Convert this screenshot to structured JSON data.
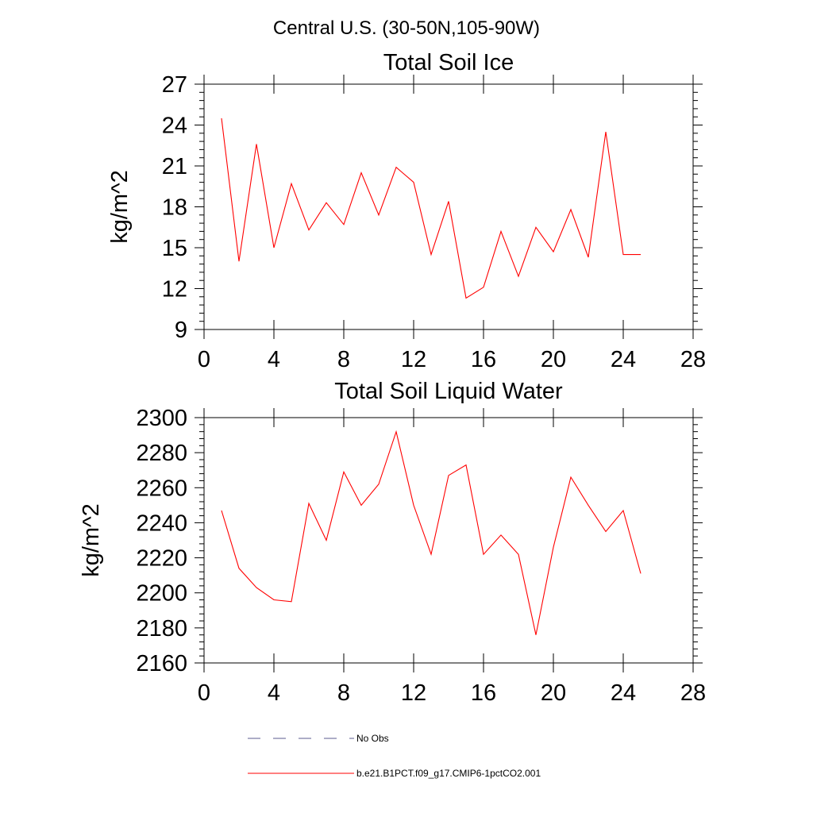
{
  "page_title": "Central U.S. (30-50N,105-90W)",
  "colors": {
    "model": "#ff0000",
    "obs": "#5b5b8f",
    "axis": "#000000"
  },
  "legend": {
    "obs_label": "No Obs",
    "model_label": "b.e21.B1PCT.f09_g17.CMIP6-1pctCO2.001"
  },
  "chart_data": [
    {
      "type": "line",
      "title": "Total Soil Ice",
      "xlabel": "",
      "ylabel": "kg/m^2",
      "xlim": [
        0,
        28
      ],
      "ylim": [
        9,
        27
      ],
      "xticks": [
        0,
        4,
        8,
        12,
        16,
        20,
        24,
        28
      ],
      "yticks": [
        9,
        12,
        15,
        18,
        21,
        24,
        27
      ],
      "x": [
        1,
        2,
        3,
        4,
        5,
        6,
        7,
        8,
        9,
        10,
        11,
        12,
        13,
        14,
        15,
        16,
        17,
        18,
        19,
        20,
        21,
        22,
        23,
        24,
        25
      ],
      "series": [
        {
          "name": "b.e21.B1PCT.f09_g17.CMIP6-1pctCO2.001",
          "values": [
            24.5,
            14.0,
            22.6,
            15.0,
            19.7,
            16.3,
            18.3,
            16.7,
            20.5,
            17.4,
            20.9,
            19.8,
            14.5,
            18.4,
            11.3,
            12.1,
            16.2,
            12.9,
            16.5,
            14.7,
            17.8,
            14.3,
            23.5,
            14.5,
            14.5
          ]
        }
      ]
    },
    {
      "type": "line",
      "title": "Total Soil Liquid Water",
      "xlabel": "",
      "ylabel": "kg/m^2",
      "xlim": [
        0,
        28
      ],
      "ylim": [
        2160,
        2300
      ],
      "xticks": [
        0,
        4,
        8,
        12,
        16,
        20,
        24,
        28
      ],
      "yticks": [
        2160,
        2180,
        2200,
        2220,
        2240,
        2260,
        2280,
        2300
      ],
      "x": [
        1,
        2,
        3,
        4,
        5,
        6,
        7,
        8,
        9,
        10,
        11,
        12,
        13,
        14,
        15,
        16,
        17,
        18,
        19,
        20,
        21,
        22,
        23,
        24,
        25
      ],
      "series": [
        {
          "name": "b.e21.B1PCT.f09_g17.CMIP6-1pctCO2.001",
          "values": [
            2247,
            2214,
            2203,
            2196,
            2195,
            2251,
            2230,
            2269,
            2250,
            2262,
            2292,
            2250,
            2222,
            2267,
            2273,
            2222,
            2233,
            2222,
            2176,
            2226,
            2266,
            2250,
            2235,
            2247,
            2211
          ]
        }
      ]
    }
  ]
}
